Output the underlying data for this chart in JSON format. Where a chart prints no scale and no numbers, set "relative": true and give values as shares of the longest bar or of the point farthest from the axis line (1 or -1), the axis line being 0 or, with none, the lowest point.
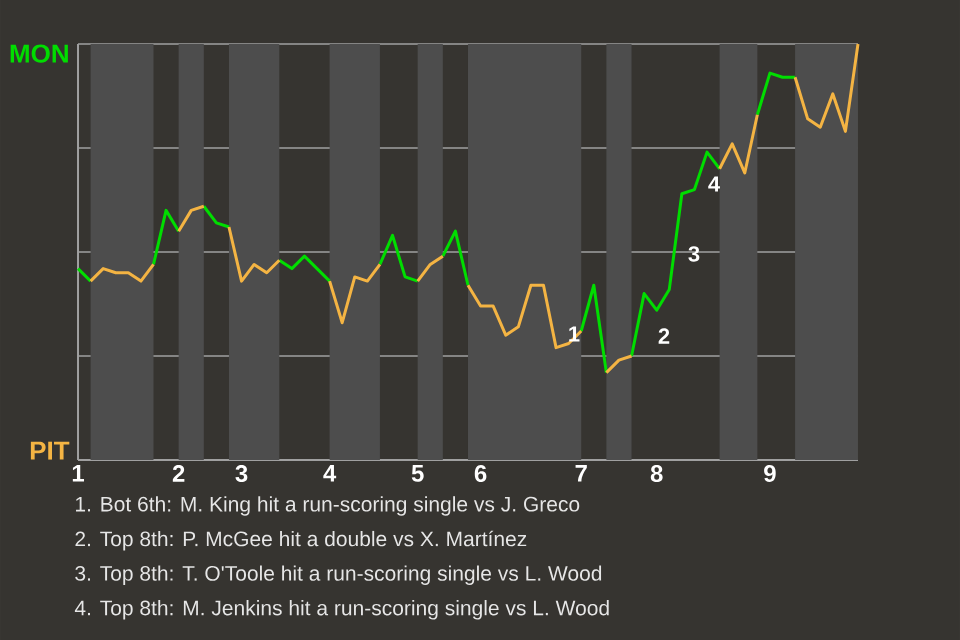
{
  "chart_data": {
    "type": "line",
    "relative": true,
    "categories": [
      "1",
      null,
      null,
      null,
      null,
      null,
      null,
      null,
      "2",
      null,
      null,
      null,
      null,
      "3",
      null,
      null,
      null,
      null,
      null,
      null,
      "4",
      null,
      null,
      null,
      null,
      null,
      null,
      "5",
      null,
      null,
      null,
      null,
      "6",
      null,
      null,
      null,
      null,
      null,
      null,
      null,
      "7",
      null,
      null,
      null,
      null,
      null,
      "8",
      null,
      null,
      null,
      null,
      null,
      null,
      null,
      null,
      "9",
      null,
      null,
      null,
      null,
      null,
      null,
      null
    ],
    "series": [
      {
        "name": "MON",
        "color": "#00dd00",
        "values": [
          0.46,
          0.43,
          null,
          null,
          null,
          null,
          0.47,
          0.6,
          0.55,
          null,
          0.61,
          0.57,
          0.56,
          null,
          null,
          null,
          0.48,
          0.46,
          0.49,
          0.46,
          0.43,
          null,
          null,
          null,
          0.47,
          0.54,
          0.44,
          0.43,
          null,
          0.49,
          0.55,
          0.42,
          null,
          null,
          null,
          null,
          null,
          null,
          null,
          null,
          0.31,
          0.42,
          0.21,
          null,
          0.25,
          0.4,
          0.36,
          0.41,
          0.64,
          0.65,
          0.74,
          0.7,
          null,
          null,
          0.83,
          0.93,
          0.92,
          0.92,
          null,
          null,
          null,
          null,
          null
        ]
      },
      {
        "name": "PIT",
        "color": "#f4b443",
        "values": [
          null,
          0.43,
          0.46,
          0.45,
          0.45,
          0.43,
          0.47,
          null,
          0.55,
          0.6,
          0.61,
          null,
          0.56,
          0.43,
          0.47,
          0.45,
          0.48,
          null,
          null,
          null,
          0.43,
          0.33,
          0.44,
          0.43,
          0.47,
          null,
          null,
          0.43,
          0.47,
          0.49,
          null,
          0.42,
          0.37,
          0.37,
          0.3,
          0.32,
          0.42,
          0.42,
          0.27,
          0.28,
          0.31,
          null,
          0.21,
          0.24,
          0.25,
          null,
          null,
          null,
          null,
          null,
          null,
          0.7,
          0.76,
          0.69,
          0.83,
          null,
          null,
          0.92,
          0.82,
          0.8,
          0.88,
          0.79,
          1
        ]
      }
    ],
    "grid": "y",
    "annotations": [
      "1",
      "2",
      "3",
      "4",
      "1. Bot 6th: M. King hit a run-scoring single vs J. Greco",
      "2. Top 8th: P. McGee hit a double vs X. Martínez",
      "3. Top 8th: T. O'Toole hit a run-scoring single vs L. Wood",
      "4. Top 8th: M. Jenkins hit a run-scoring single vs L. Wood"
    ]
  }
}
